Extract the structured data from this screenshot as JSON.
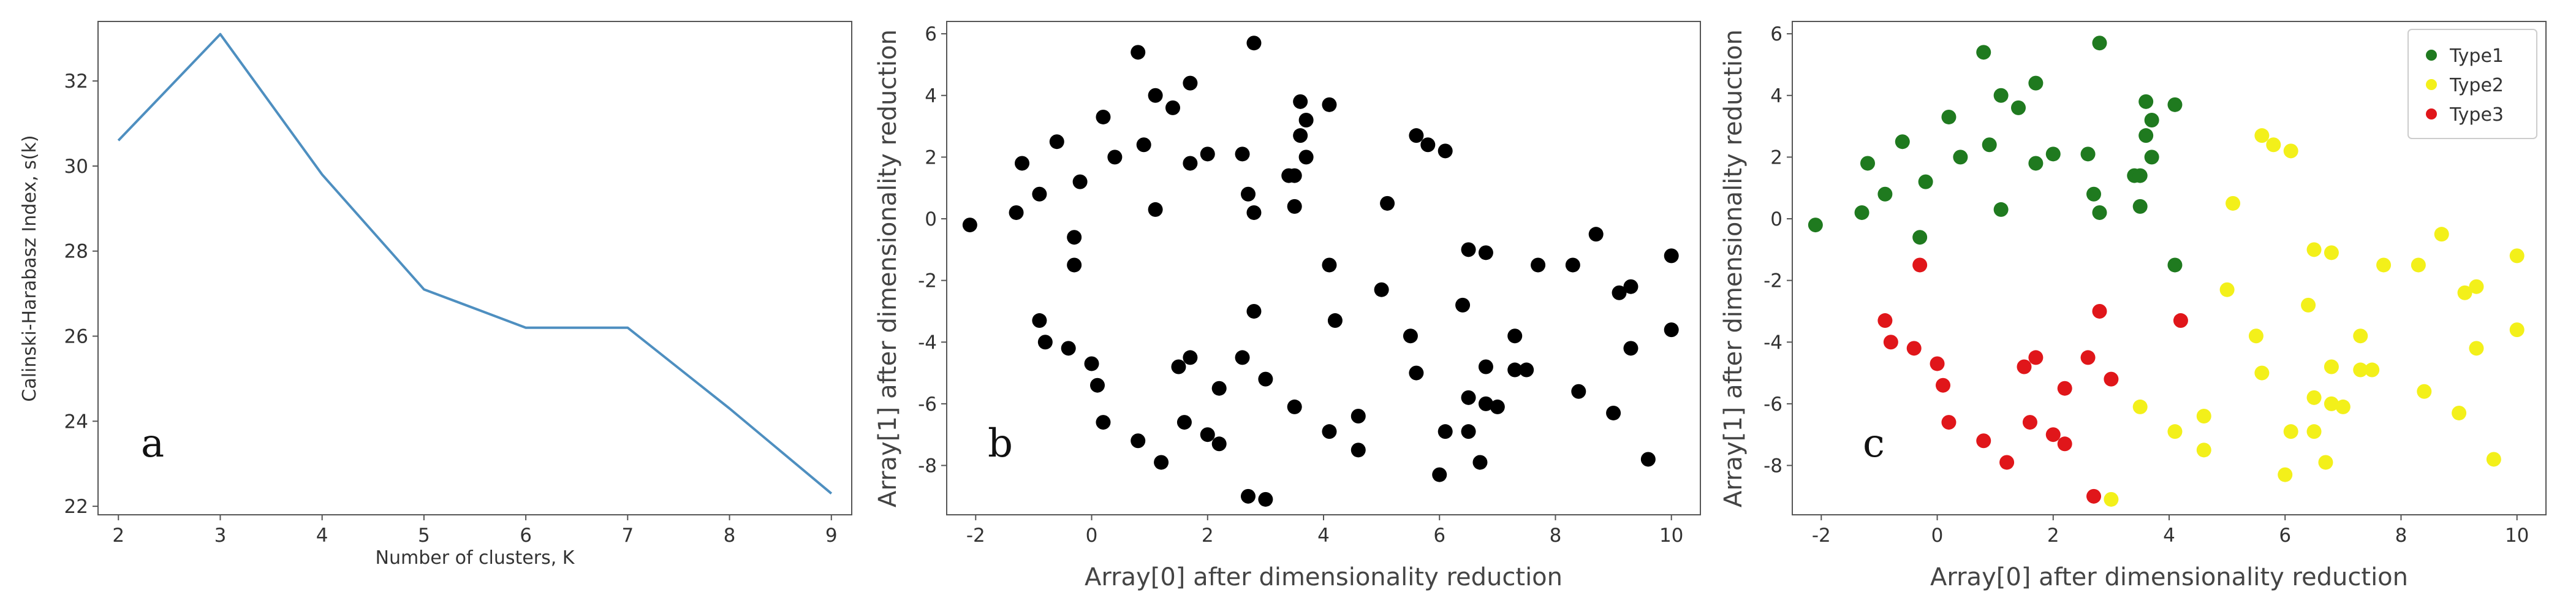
{
  "figure": {
    "panels": [
      "a",
      "b",
      "c"
    ]
  },
  "colors": {
    "line": "#4e8fc0",
    "black_points": "#000000",
    "type1": "#1f7a1f",
    "type2": "#f3f01a",
    "type3": "#e0161a",
    "frame": "#555555"
  },
  "chart_data": [
    {
      "panel": "a",
      "type": "line",
      "xlabel": "Number of clusters, K",
      "ylabel": "Calinski-Harabasz Index, s(k)",
      "xlim": [
        1.8,
        9.2
      ],
      "ylim": [
        21.8,
        33.4
      ],
      "xticks": [
        2,
        3,
        4,
        5,
        6,
        7,
        8,
        9
      ],
      "yticks": [
        22,
        24,
        26,
        28,
        30,
        32
      ],
      "grid": false,
      "x": [
        2,
        3,
        4,
        5,
        6,
        7,
        8,
        9
      ],
      "y": [
        30.6,
        33.1,
        29.8,
        27.1,
        26.2,
        26.2,
        24.3,
        22.3
      ]
    },
    {
      "panel": "b",
      "type": "scatter",
      "xlabel": "Array[0] after dimensionality reduction",
      "ylabel": "Array[1] after dimensionality reduction",
      "xlim": [
        -2.5,
        10.5
      ],
      "ylim": [
        -9.6,
        6.4
      ],
      "xticks": [
        -2,
        0,
        2,
        4,
        6,
        8,
        10
      ],
      "yticks": [
        -8,
        -6,
        -4,
        -2,
        0,
        2,
        4,
        6
      ],
      "grid": false,
      "points": [
        [
          0.8,
          5.4
        ],
        [
          2.8,
          5.7
        ],
        [
          1.1,
          4.0
        ],
        [
          1.7,
          4.4
        ],
        [
          1.4,
          3.6
        ],
        [
          3.6,
          3.8
        ],
        [
          4.1,
          3.7
        ],
        [
          0.2,
          3.3
        ],
        [
          3.7,
          3.2
        ],
        [
          -0.6,
          2.5
        ],
        [
          0.9,
          2.4
        ],
        [
          2.0,
          2.1
        ],
        [
          1.7,
          1.8
        ],
        [
          2.6,
          2.1
        ],
        [
          -1.2,
          1.8
        ],
        [
          0.4,
          2.0
        ],
        [
          3.6,
          2.7
        ],
        [
          3.7,
          2.0
        ],
        [
          3.4,
          1.4
        ],
        [
          3.5,
          1.4
        ],
        [
          -0.9,
          0.8
        ],
        [
          -0.2,
          1.2
        ],
        [
          1.1,
          0.3
        ],
        [
          -1.3,
          0.2
        ],
        [
          3.5,
          0.4
        ],
        [
          2.7,
          0.8
        ],
        [
          2.8,
          0.2
        ],
        [
          -2.1,
          -0.2
        ],
        [
          -0.3,
          -0.6
        ],
        [
          -0.3,
          -1.5
        ],
        [
          5.6,
          2.7
        ],
        [
          5.8,
          2.4
        ],
        [
          6.1,
          2.2
        ],
        [
          5.1,
          0.5
        ],
        [
          6.5,
          -1.0
        ],
        [
          6.8,
          -1.1
        ],
        [
          4.1,
          -1.5
        ],
        [
          7.7,
          -1.5
        ],
        [
          8.3,
          -1.5
        ],
        [
          8.7,
          -0.5
        ],
        [
          10.0,
          -1.2
        ],
        [
          5.0,
          -2.3
        ],
        [
          9.3,
          -2.2
        ],
        [
          9.1,
          -2.4
        ],
        [
          6.4,
          -2.8
        ],
        [
          4.2,
          -3.3
        ],
        [
          10.0,
          -3.6
        ],
        [
          5.5,
          -3.8
        ],
        [
          7.3,
          -3.8
        ],
        [
          9.3,
          -4.2
        ],
        [
          6.8,
          -4.8
        ],
        [
          7.3,
          -4.9
        ],
        [
          7.5,
          -4.9
        ],
        [
          5.6,
          -5.0
        ],
        [
          6.5,
          -5.8
        ],
        [
          6.8,
          -6.0
        ],
        [
          7.0,
          -6.1
        ],
        [
          8.4,
          -5.6
        ],
        [
          6.5,
          -6.9
        ],
        [
          6.1,
          -6.9
        ],
        [
          4.6,
          -6.4
        ],
        [
          3.5,
          -6.1
        ],
        [
          9.0,
          -6.3
        ],
        [
          4.1,
          -6.9
        ],
        [
          4.6,
          -7.5
        ],
        [
          6.7,
          -7.9
        ],
        [
          9.6,
          -7.8
        ],
        [
          6.0,
          -8.3
        ],
        [
          3.0,
          -9.1
        ],
        [
          -0.9,
          -3.3
        ],
        [
          -0.8,
          -4.0
        ],
        [
          -0.4,
          -4.2
        ],
        [
          0.0,
          -4.7
        ],
        [
          0.1,
          -5.4
        ],
        [
          1.7,
          -4.5
        ],
        [
          1.5,
          -4.8
        ],
        [
          2.6,
          -4.5
        ],
        [
          2.8,
          -3.0
        ],
        [
          3.0,
          -5.2
        ],
        [
          2.2,
          -5.5
        ],
        [
          0.2,
          -6.6
        ],
        [
          1.6,
          -6.6
        ],
        [
          2.0,
          -7.0
        ],
        [
          2.2,
          -7.3
        ],
        [
          0.8,
          -7.2
        ],
        [
          1.2,
          -7.9
        ],
        [
          2.7,
          -9.0
        ]
      ]
    },
    {
      "panel": "c",
      "type": "scatter",
      "xlabel": "Array[0] after dimensionality reduction",
      "ylabel": "Array[1] after dimensionality reduction",
      "xlim": [
        -2.5,
        10.5
      ],
      "ylim": [
        -9.6,
        6.4
      ],
      "xticks": [
        -2,
        0,
        2,
        4,
        6,
        8,
        10
      ],
      "yticks": [
        -8,
        -6,
        -4,
        -2,
        0,
        2,
        4,
        6
      ],
      "grid": false,
      "legend_position": "top-right",
      "series": [
        {
          "name": "Type1",
          "color": "#1f7a1f",
          "points": [
            [
              0.8,
              5.4
            ],
            [
              2.8,
              5.7
            ],
            [
              1.1,
              4.0
            ],
            [
              1.7,
              4.4
            ],
            [
              1.4,
              3.6
            ],
            [
              3.6,
              3.8
            ],
            [
              4.1,
              3.7
            ],
            [
              0.2,
              3.3
            ],
            [
              3.7,
              3.2
            ],
            [
              -0.6,
              2.5
            ],
            [
              0.9,
              2.4
            ],
            [
              2.0,
              2.1
            ],
            [
              1.7,
              1.8
            ],
            [
              2.6,
              2.1
            ],
            [
              -1.2,
              1.8
            ],
            [
              0.4,
              2.0
            ],
            [
              3.6,
              2.7
            ],
            [
              3.7,
              2.0
            ],
            [
              3.4,
              1.4
            ],
            [
              3.5,
              1.4
            ],
            [
              -0.9,
              0.8
            ],
            [
              -0.2,
              1.2
            ],
            [
              1.1,
              0.3
            ],
            [
              -1.3,
              0.2
            ],
            [
              3.5,
              0.4
            ],
            [
              2.7,
              0.8
            ],
            [
              2.8,
              0.2
            ],
            [
              -2.1,
              -0.2
            ],
            [
              -0.3,
              -0.6
            ],
            [
              4.1,
              -1.5
            ]
          ]
        },
        {
          "name": "Type2",
          "color": "#f3f01a",
          "points": [
            [
              5.6,
              2.7
            ],
            [
              5.8,
              2.4
            ],
            [
              6.1,
              2.2
            ],
            [
              5.1,
              0.5
            ],
            [
              6.5,
              -1.0
            ],
            [
              6.8,
              -1.1
            ],
            [
              7.7,
              -1.5
            ],
            [
              8.3,
              -1.5
            ],
            [
              8.7,
              -0.5
            ],
            [
              10.0,
              -1.2
            ],
            [
              5.0,
              -2.3
            ],
            [
              9.3,
              -2.2
            ],
            [
              9.1,
              -2.4
            ],
            [
              6.4,
              -2.8
            ],
            [
              10.0,
              -3.6
            ],
            [
              5.5,
              -3.8
            ],
            [
              7.3,
              -3.8
            ],
            [
              9.3,
              -4.2
            ],
            [
              6.8,
              -4.8
            ],
            [
              7.3,
              -4.9
            ],
            [
              7.5,
              -4.9
            ],
            [
              5.6,
              -5.0
            ],
            [
              6.5,
              -5.8
            ],
            [
              6.8,
              -6.0
            ],
            [
              7.0,
              -6.1
            ],
            [
              8.4,
              -5.6
            ],
            [
              6.5,
              -6.9
            ],
            [
              6.1,
              -6.9
            ],
            [
              4.6,
              -6.4
            ],
            [
              3.5,
              -6.1
            ],
            [
              9.0,
              -6.3
            ],
            [
              4.1,
              -6.9
            ],
            [
              4.6,
              -7.5
            ],
            [
              6.7,
              -7.9
            ],
            [
              9.6,
              -7.8
            ],
            [
              6.0,
              -8.3
            ],
            [
              3.0,
              -9.1
            ]
          ]
        },
        {
          "name": "Type3",
          "color": "#e0161a",
          "points": [
            [
              -0.3,
              -1.5
            ],
            [
              4.2,
              -3.3
            ],
            [
              -0.9,
              -3.3
            ],
            [
              -0.8,
              -4.0
            ],
            [
              -0.4,
              -4.2
            ],
            [
              0.0,
              -4.7
            ],
            [
              0.1,
              -5.4
            ],
            [
              1.7,
              -4.5
            ],
            [
              1.5,
              -4.8
            ],
            [
              2.6,
              -4.5
            ],
            [
              2.8,
              -3.0
            ],
            [
              3.0,
              -5.2
            ],
            [
              2.2,
              -5.5
            ],
            [
              0.2,
              -6.6
            ],
            [
              1.6,
              -6.6
            ],
            [
              2.0,
              -7.0
            ],
            [
              2.2,
              -7.3
            ],
            [
              0.8,
              -7.2
            ],
            [
              1.2,
              -7.9
            ],
            [
              2.7,
              -9.0
            ]
          ]
        }
      ]
    }
  ]
}
